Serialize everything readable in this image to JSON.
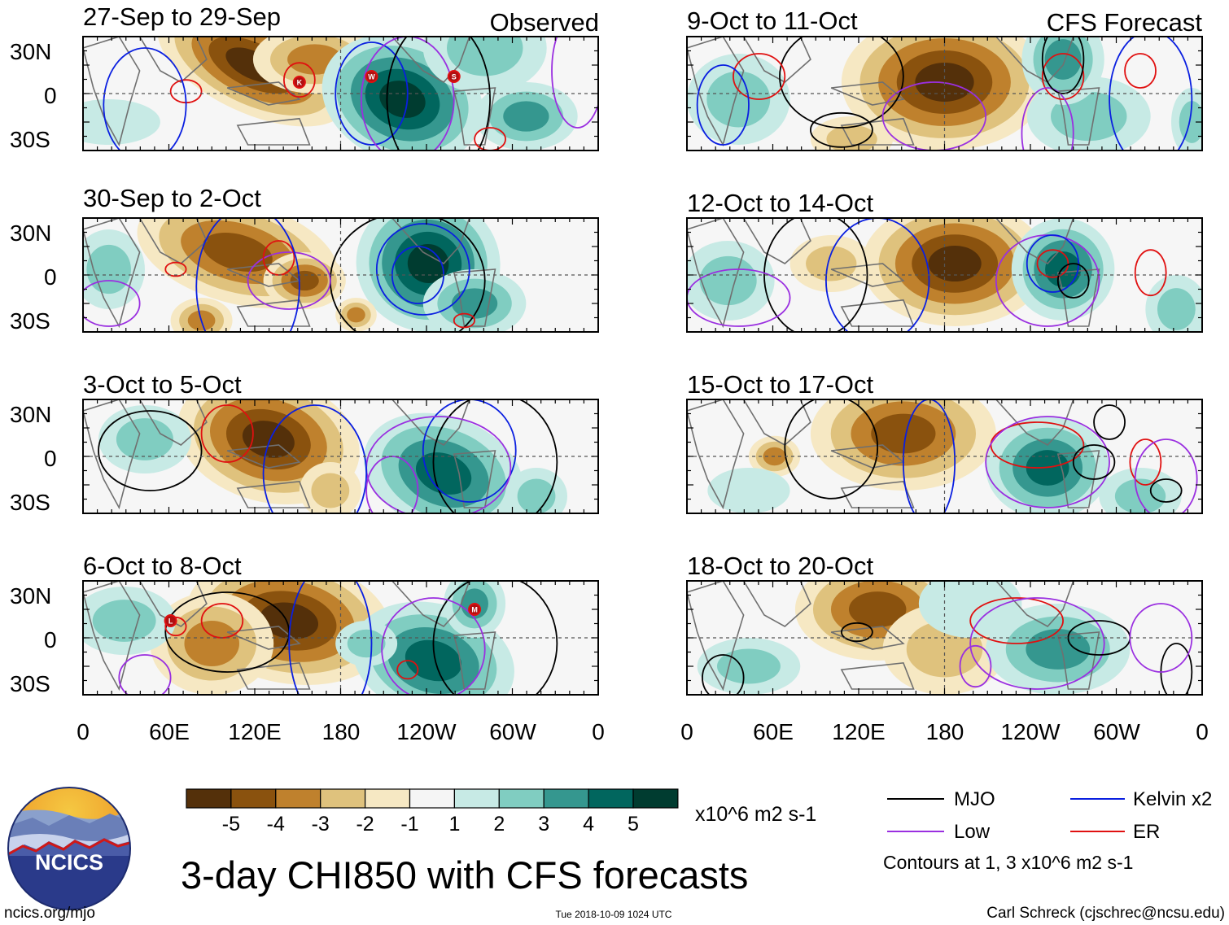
{
  "title": "3-day CHI850 with CFS forecasts",
  "header": {
    "observed_label": "Observed",
    "forecast_label": "CFS Forecast"
  },
  "observed_panels": [
    {
      "period": "27-Sep to 29-Sep",
      "storm_markers": [
        "K",
        "W",
        "S"
      ]
    },
    {
      "period": "30-Sep to 2-Oct",
      "storm_markers": []
    },
    {
      "period": "3-Oct to 5-Oct",
      "storm_markers": []
    },
    {
      "period": "6-Oct to 8-Oct",
      "storm_markers": [
        "L",
        "M"
      ]
    }
  ],
  "forecast_panels": [
    {
      "period": "9-Oct to 11-Oct"
    },
    {
      "period": "12-Oct to 14-Oct"
    },
    {
      "period": "15-Oct to 17-Oct"
    },
    {
      "period": "18-Oct to 20-Oct"
    }
  ],
  "lat_labels": [
    "30N",
    "0",
    "30S"
  ],
  "lon_labels": [
    "0",
    "60E",
    "120E",
    "180",
    "120W",
    "60W",
    "0"
  ],
  "colorbar": {
    "ticks": [
      "-5",
      "-4",
      "-3",
      "-2",
      "-1",
      "1",
      "2",
      "3",
      "4",
      "5"
    ],
    "colors": [
      "#54300a",
      "#8a520e",
      "#bf812d",
      "#dfc27d",
      "#f6e8c3",
      "#f5f5f5",
      "#c7eae5",
      "#80cdc1",
      "#35978f",
      "#01665e",
      "#003c30"
    ],
    "units": "x10^6 m2 s-1"
  },
  "legend": {
    "items": [
      {
        "name": "MJO",
        "color": "#000000"
      },
      {
        "name": "Kelvin x2",
        "color": "#0a1fe0"
      },
      {
        "name": "Low",
        "color": "#9a2fe0"
      },
      {
        "name": "ER",
        "color": "#e01010"
      }
    ],
    "note": "Contours at 1, 3 x10^6 m2 s-1"
  },
  "logo": {
    "text": "NCICS"
  },
  "footer": {
    "left": "ncics.org/mjo",
    "center": "Tue 2018-10-09 1024 UTC",
    "right": "Carl Schreck (cjschrec@ncsu.edu)"
  }
}
